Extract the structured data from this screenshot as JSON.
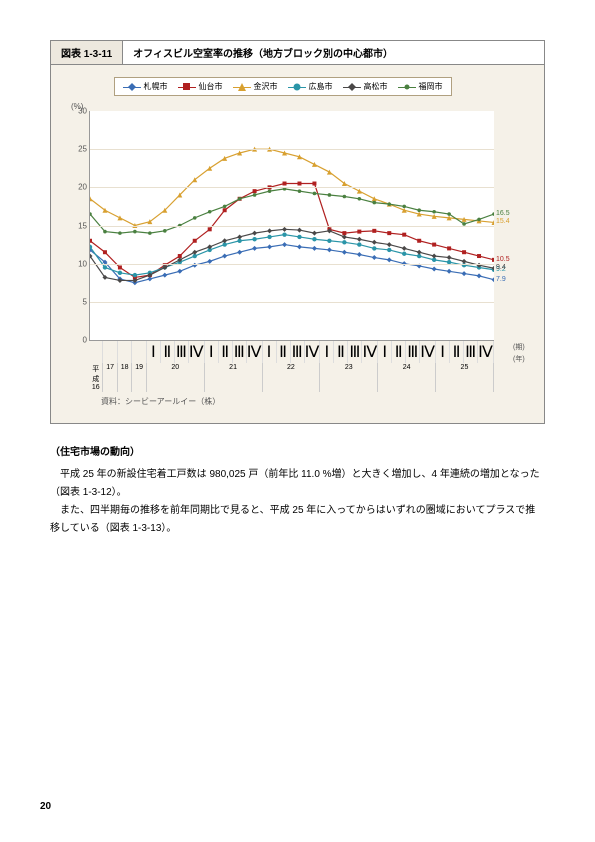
{
  "chart": {
    "code": "図表 1-3-11",
    "title": "オフィスビル空室率の推移（地方ブロック別の中心都市）",
    "y_axis_unit": "(%)",
    "source": "資料：シービーアールイー（株）",
    "ylim": [
      0,
      30
    ],
    "ytick_step": 5,
    "plot_bg": "#ffffff",
    "grid_color": "#e8e0d0",
    "box_bg": "#f5f1e8",
    "x_caption_top": "(期)",
    "x_caption_bottom": "(年)",
    "years": [
      {
        "label": "平成\n16",
        "quarters": [
          ""
        ]
      },
      {
        "label": "17",
        "quarters": [
          ""
        ]
      },
      {
        "label": "18",
        "quarters": [
          ""
        ]
      },
      {
        "label": "19",
        "quarters": [
          ""
        ]
      },
      {
        "label": "20",
        "quarters": [
          "Ⅰ",
          "Ⅱ",
          "Ⅲ",
          "Ⅳ"
        ]
      },
      {
        "label": "21",
        "quarters": [
          "Ⅰ",
          "Ⅱ",
          "Ⅲ",
          "Ⅳ"
        ]
      },
      {
        "label": "22",
        "quarters": [
          "Ⅰ",
          "Ⅱ",
          "Ⅲ",
          "Ⅳ"
        ]
      },
      {
        "label": "23",
        "quarters": [
          "Ⅰ",
          "Ⅱ",
          "Ⅲ",
          "Ⅳ"
        ]
      },
      {
        "label": "24",
        "quarters": [
          "Ⅰ",
          "Ⅱ",
          "Ⅲ",
          "Ⅳ"
        ]
      },
      {
        "label": "25",
        "quarters": [
          "Ⅰ",
          "Ⅱ",
          "Ⅲ",
          "Ⅳ"
        ]
      }
    ],
    "series": [
      {
        "name": "札幌市",
        "color": "#3a6db5",
        "marker": "diamond",
        "end_label": "7.9",
        "values": [
          11.8,
          10.2,
          8.0,
          7.5,
          8.0,
          8.5,
          9.0,
          9.8,
          10.3,
          11.0,
          11.5,
          12.0,
          12.2,
          12.5,
          12.2,
          12.0,
          11.8,
          11.5,
          11.2,
          10.8,
          10.5,
          10.0,
          9.7,
          9.3,
          9.0,
          8.7,
          8.4,
          7.9
        ]
      },
      {
        "name": "仙台市",
        "color": "#b02020",
        "marker": "square",
        "end_label": "10.5",
        "values": [
          13.0,
          11.5,
          9.5,
          8.2,
          8.5,
          9.8,
          11.0,
          13.0,
          14.5,
          17.0,
          18.5,
          19.5,
          20.0,
          20.5,
          20.5,
          20.5,
          14.5,
          14.0,
          14.2,
          14.3,
          14.0,
          13.8,
          13.0,
          12.5,
          12.0,
          11.5,
          11.0,
          10.5
        ]
      },
      {
        "name": "金沢市",
        "color": "#d8a030",
        "marker": "triangle",
        "end_label": "15.4",
        "values": [
          18.5,
          17.0,
          16.0,
          15.0,
          15.5,
          17.0,
          19.0,
          21.0,
          22.5,
          23.8,
          24.5,
          25.0,
          25.0,
          24.5,
          24.0,
          23.0,
          22.0,
          20.5,
          19.5,
          18.5,
          17.8,
          17.0,
          16.5,
          16.2,
          16.0,
          15.8,
          15.6,
          15.4
        ]
      },
      {
        "name": "広島市",
        "color": "#2a95a8",
        "marker": "circle",
        "end_label": "9.2",
        "values": [
          12.2,
          9.5,
          8.8,
          8.5,
          8.8,
          9.5,
          10.2,
          11.0,
          11.8,
          12.5,
          13.0,
          13.2,
          13.5,
          13.8,
          13.5,
          13.2,
          13.0,
          12.8,
          12.5,
          12.0,
          11.8,
          11.3,
          11.0,
          10.5,
          10.2,
          9.8,
          9.5,
          9.2
        ]
      },
      {
        "name": "高松市",
        "color": "#4a4848",
        "marker": "diamond",
        "end_label": "9.4",
        "values": [
          11.0,
          8.2,
          7.8,
          7.8,
          8.5,
          9.5,
          10.5,
          11.5,
          12.2,
          13.0,
          13.5,
          14.0,
          14.3,
          14.5,
          14.4,
          14.0,
          14.3,
          13.5,
          13.2,
          12.8,
          12.5,
          12.0,
          11.5,
          11.0,
          10.8,
          10.3,
          9.8,
          9.4
        ]
      },
      {
        "name": "福岡市",
        "color": "#4a8040",
        "marker": "dot",
        "end_label": "16.5",
        "values": [
          16.5,
          14.2,
          14.0,
          14.2,
          14.0,
          14.3,
          15.0,
          16.0,
          16.8,
          17.5,
          18.5,
          19.0,
          19.5,
          19.8,
          19.5,
          19.2,
          19.0,
          18.8,
          18.5,
          18.0,
          17.8,
          17.5,
          17.0,
          16.8,
          16.5,
          15.2,
          15.8,
          16.5
        ]
      }
    ]
  },
  "body": {
    "heading": "（住宅市場の動向）",
    "p1": "　平成 25 年の新設住宅着工戸数は 980,025 戸（前年比 11.0 %増）と大きく増加し、4 年連続の増加となった（図表 1-3-12）。",
    "p2": "　また、四半期毎の推移を前年同期比で見ると、平成 25 年に入ってからはいずれの圏域においてプラスで推移している（図表 1-3-13）。"
  },
  "page_number": "20"
}
